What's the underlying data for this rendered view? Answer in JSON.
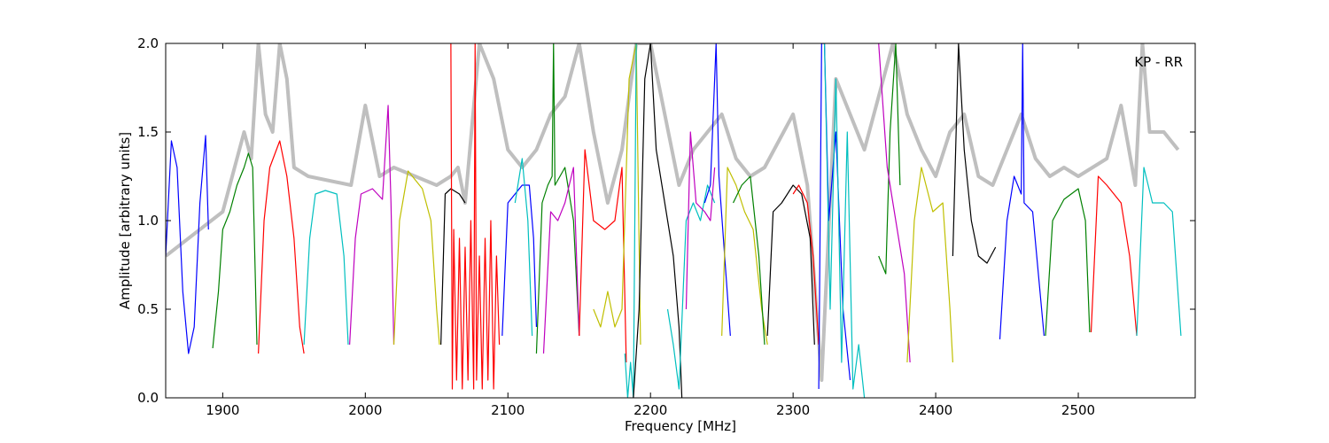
{
  "chart_data": {
    "type": "line",
    "xlabel": "Frequency [MHz]",
    "ylabel": "Amplitude [arbitrary units]",
    "annotation": "KP - RR",
    "xlim": [
      1860,
      2582
    ],
    "ylim": [
      0,
      2
    ],
    "xticks": [
      1900,
      2000,
      2100,
      2200,
      2300,
      2400,
      2500
    ],
    "yticks": [
      {
        "value": 0,
        "label": "0.0"
      },
      {
        "value": 0.5,
        "label": "0.5"
      },
      {
        "value": 1,
        "label": "1.0"
      },
      {
        "value": 1.5,
        "label": "1.5"
      },
      {
        "value": 2,
        "label": "2.0"
      }
    ],
    "series": [
      {
        "color": "#bfbfbf",
        "linewidth": 4,
        "x": [
          1860,
          1900,
          1915,
          1920,
          1925,
          1930,
          1935,
          1940,
          1945,
          1950,
          1960,
          1990,
          2000,
          2010,
          2020,
          2050,
          2060,
          2065,
          2070,
          2080,
          2090,
          2100,
          2110,
          2120,
          2130,
          2140,
          2150,
          2160,
          2170,
          2180,
          2190,
          2200,
          2210,
          2220,
          2230,
          2240,
          2250,
          2260,
          2270,
          2280,
          2290,
          2300,
          2310,
          2320,
          2330,
          2340,
          2350,
          2360,
          2370,
          2380,
          2390,
          2400,
          2410,
          2420,
          2430,
          2440,
          2450,
          2460,
          2470,
          2480,
          2490,
          2500,
          2510,
          2520,
          2530,
          2540,
          2545,
          2550,
          2560,
          2570
        ],
        "values": [
          0.8,
          1.05,
          1.5,
          1.35,
          2.0,
          1.6,
          1.5,
          2.0,
          1.8,
          1.3,
          1.25,
          1.2,
          1.65,
          1.25,
          1.3,
          1.2,
          1.25,
          1.3,
          1.1,
          2.0,
          1.8,
          1.4,
          1.3,
          1.4,
          1.6,
          1.7,
          2.0,
          1.5,
          1.1,
          1.4,
          2.0,
          2.0,
          1.6,
          1.2,
          1.4,
          1.5,
          1.6,
          1.35,
          1.25,
          1.3,
          1.45,
          1.6,
          1.2,
          0.1,
          1.8,
          1.6,
          1.4,
          1.7,
          2.0,
          1.6,
          1.4,
          1.25,
          1.5,
          1.6,
          1.25,
          1.2,
          1.4,
          1.6,
          1.35,
          1.25,
          1.3,
          1.25,
          1.3,
          1.35,
          1.65,
          1.2,
          2.0,
          1.5,
          1.5,
          1.4
        ]
      },
      {
        "color": "#0000ff",
        "x": [
          1860,
          1864,
          1868,
          1872,
          1876,
          1880,
          1884,
          1888,
          1890
        ],
        "values": [
          0.8,
          1.45,
          1.3,
          0.6,
          0.25,
          0.4,
          1.1,
          1.48,
          0.95
        ]
      },
      {
        "color": "#008000",
        "x": [
          1893,
          1897,
          1900,
          1905,
          1910,
          1915,
          1918,
          1921,
          1924
        ],
        "values": [
          0.28,
          0.6,
          0.95,
          1.05,
          1.2,
          1.3,
          1.38,
          1.3,
          0.3
        ]
      },
      {
        "color": "#ff0000",
        "x": [
          1925,
          1929,
          1933,
          1940,
          1945,
          1950,
          1954,
          1957
        ],
        "values": [
          0.25,
          1.0,
          1.3,
          1.45,
          1.25,
          0.9,
          0.4,
          0.25
        ]
      },
      {
        "color": "#00bfbf",
        "x": [
          1957,
          1961,
          1965,
          1972,
          1980,
          1985,
          1988
        ],
        "values": [
          0.3,
          0.9,
          1.15,
          1.17,
          1.15,
          0.8,
          0.3
        ]
      },
      {
        "color": "#bf00bf",
        "x": [
          1989,
          1993,
          1997,
          2005,
          2012,
          2016,
          2018,
          2020
        ],
        "values": [
          0.3,
          0.9,
          1.15,
          1.18,
          1.12,
          1.65,
          1.1,
          0.3
        ]
      },
      {
        "color": "#bfbf00",
        "x": [
          2020,
          2024,
          2030,
          2040,
          2046,
          2050,
          2052
        ],
        "values": [
          0.3,
          1.0,
          1.28,
          1.18,
          1.0,
          0.5,
          0.3
        ]
      },
      {
        "color": "#000000",
        "x": [
          2053,
          2056,
          2060,
          2066,
          2070
        ],
        "values": [
          0.3,
          1.15,
          1.18,
          1.15,
          1.1
        ]
      },
      {
        "color": "#ff0000",
        "x": [
          2060,
          2061,
          2062,
          2064,
          2066,
          2068,
          2070,
          2072,
          2074,
          2076,
          2077,
          2078,
          2080,
          2082,
          2084,
          2086,
          2088,
          2090,
          2092,
          2094
        ],
        "values": [
          2.0,
          0.05,
          0.95,
          0.1,
          0.9,
          0.05,
          0.85,
          0.1,
          1.0,
          0.05,
          2.0,
          0.1,
          0.8,
          0.05,
          0.9,
          0.1,
          1.0,
          0.05,
          0.8,
          0.3
        ]
      },
      {
        "color": "#0000ff",
        "x": [
          2096,
          2100,
          2105,
          2110,
          2115,
          2118,
          2120
        ],
        "values": [
          0.35,
          1.1,
          1.15,
          1.2,
          1.2,
          0.9,
          0.4
        ]
      },
      {
        "color": "#00bfbf",
        "x": [
          2105,
          2110,
          2114,
          2117
        ],
        "values": [
          1.1,
          1.35,
          1.0,
          0.35
        ]
      },
      {
        "color": "#008000",
        "x": [
          2120,
          2124,
          2128,
          2131,
          2132,
          2133,
          2140,
          2146,
          2150
        ],
        "values": [
          0.25,
          1.1,
          1.2,
          1.25,
          2.0,
          1.2,
          1.3,
          1.0,
          0.35
        ]
      },
      {
        "color": "#bf00bf",
        "x": [
          2125,
          2130,
          2135,
          2140,
          2146,
          2150
        ],
        "values": [
          0.25,
          1.05,
          1.0,
          1.1,
          1.3,
          0.35
        ]
      },
      {
        "color": "#ff0000",
        "x": [
          2150,
          2154,
          2160,
          2168,
          2175,
          2180,
          2183
        ],
        "values": [
          0.35,
          1.4,
          1.0,
          0.95,
          1.0,
          1.3,
          0.2
        ]
      },
      {
        "color": "#bfbf00",
        "x": [
          2160,
          2165,
          2170,
          2175,
          2180,
          2185,
          2190,
          2193
        ],
        "values": [
          0.5,
          0.4,
          0.6,
          0.4,
          0.5,
          1.8,
          2.0,
          0.3
        ]
      },
      {
        "color": "#00bfbf",
        "x": [
          2182,
          2184,
          2186,
          2188,
          2190
        ],
        "values": [
          0.25,
          0,
          0.2,
          0,
          2.0
        ]
      },
      {
        "color": "#000000",
        "x": [
          2188,
          2192,
          2196,
          2200,
          2204,
          2208,
          2212,
          2216,
          2220,
          2222
        ],
        "values": [
          0,
          0.5,
          1.8,
          2.0,
          1.4,
          1.2,
          1.0,
          0.8,
          0.4,
          0
        ]
      },
      {
        "color": "#00bfbf",
        "x": [
          2212,
          2216,
          2220,
          2225,
          2230,
          2235,
          2240,
          2245
        ],
        "values": [
          0.5,
          0.3,
          0.05,
          1.0,
          1.1,
          1.0,
          1.2,
          1.1
        ]
      },
      {
        "color": "#bf00bf",
        "x": [
          2225,
          2228,
          2232,
          2238,
          2242,
          2245
        ],
        "values": [
          0.5,
          1.5,
          1.1,
          1.05,
          1.0,
          1.3
        ]
      },
      {
        "color": "#0000ff",
        "x": [
          2238,
          2242,
          2246,
          2248,
          2252,
          2256
        ],
        "values": [
          1.1,
          1.2,
          2.0,
          1.25,
          0.8,
          0.35
        ]
      },
      {
        "color": "#bfbf00",
        "x": [
          2250,
          2254,
          2260,
          2266,
          2272,
          2278,
          2282
        ],
        "values": [
          0.35,
          1.3,
          1.2,
          1.05,
          0.95,
          0.5,
          0.3
        ]
      },
      {
        "color": "#008000",
        "x": [
          2258,
          2264,
          2270,
          2276,
          2280
        ],
        "values": [
          1.1,
          1.2,
          1.25,
          0.8,
          0.3
        ]
      },
      {
        "color": "#000000",
        "x": [
          2282,
          2286,
          2292,
          2300,
          2306,
          2312,
          2315
        ],
        "values": [
          0.35,
          1.05,
          1.1,
          1.2,
          1.15,
          0.9,
          0.3
        ]
      },
      {
        "color": "#ff0000",
        "x": [
          2300,
          2304,
          2310,
          2314,
          2318
        ],
        "values": [
          1.15,
          1.2,
          1.1,
          0.8,
          0.3
        ]
      },
      {
        "color": "#0000ff",
        "x": [
          2318,
          2320,
          2322,
          2325,
          2330,
          2335,
          2340
        ],
        "values": [
          0.05,
          2.0,
          2.0,
          1.0,
          1.5,
          0.5,
          0.1
        ]
      },
      {
        "color": "#00bfbf",
        "x": [
          2322,
          2326,
          2330,
          2334,
          2338,
          2342,
          2346,
          2350
        ],
        "values": [
          2.0,
          0.5,
          1.8,
          0.2,
          1.5,
          0.05,
          0.3,
          0
        ]
      },
      {
        "color": "#008000",
        "x": [
          2360,
          2365,
          2368,
          2372,
          2375
        ],
        "values": [
          0.8,
          0.7,
          1.5,
          2.0,
          1.2
        ]
      },
      {
        "color": "#bf00bf",
        "x": [
          2360,
          2366,
          2372,
          2378,
          2382
        ],
        "values": [
          2.0,
          1.3,
          1.0,
          0.7,
          0.2
        ]
      },
      {
        "color": "#bfbf00",
        "x": [
          2380,
          2385,
          2390,
          2398,
          2405,
          2410,
          2412
        ],
        "values": [
          0.2,
          1.0,
          1.3,
          1.05,
          1.1,
          0.5,
          0.2
        ]
      },
      {
        "color": "#000000",
        "x": [
          2412,
          2416,
          2420,
          2425,
          2430,
          2436,
          2442
        ],
        "values": [
          0.8,
          2.0,
          1.4,
          1.0,
          0.8,
          0.76,
          0.85
        ]
      },
      {
        "color": "#0000ff",
        "x": [
          2445,
          2450,
          2455,
          2460,
          2461,
          2462,
          2468,
          2476
        ],
        "values": [
          0.33,
          1.0,
          1.25,
          1.15,
          2.0,
          1.1,
          1.05,
          0.35
        ]
      },
      {
        "color": "#008000",
        "x": [
          2477,
          2482,
          2490,
          2500,
          2505,
          2508
        ],
        "values": [
          0.35,
          1.0,
          1.12,
          1.18,
          1.0,
          0.37
        ]
      },
      {
        "color": "#ff0000",
        "x": [
          2509,
          2514,
          2520,
          2530,
          2536,
          2541
        ],
        "values": [
          0.37,
          1.25,
          1.2,
          1.1,
          0.8,
          0.35
        ]
      },
      {
        "color": "#00bfbf",
        "x": [
          2541,
          2546,
          2552,
          2560,
          2566,
          2572
        ],
        "values": [
          0.35,
          1.3,
          1.1,
          1.1,
          1.05,
          0.35
        ]
      }
    ]
  }
}
